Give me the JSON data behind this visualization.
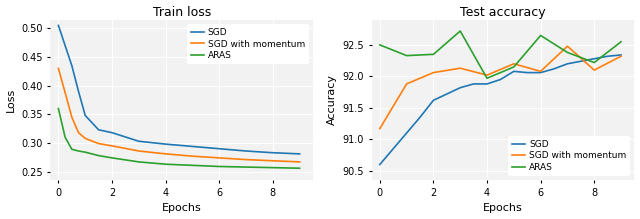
{
  "train_loss": {
    "title": "Train loss",
    "xlabel": "Epochs",
    "ylabel": "Loss",
    "ylim": [
      0.235,
      0.515
    ],
    "xlim": [
      -0.3,
      9.5
    ],
    "yticks": [
      0.25,
      0.3,
      0.35,
      0.4,
      0.45,
      0.5
    ],
    "xticks": [
      0,
      2,
      4,
      6,
      8
    ],
    "SGD": {
      "x": [
        0,
        0.25,
        0.5,
        0.75,
        1,
        1.5,
        2,
        3,
        4,
        5,
        6,
        7,
        8,
        9
      ],
      "y": [
        0.505,
        0.47,
        0.435,
        0.39,
        0.348,
        0.323,
        0.318,
        0.303,
        0.298,
        0.294,
        0.29,
        0.286,
        0.283,
        0.281
      ],
      "color": "#1f77b4"
    },
    "SGD_momentum": {
      "x": [
        0,
        0.25,
        0.5,
        0.75,
        1,
        1.5,
        2,
        3,
        4,
        5,
        6,
        7,
        8,
        9
      ],
      "y": [
        0.43,
        0.388,
        0.345,
        0.318,
        0.308,
        0.299,
        0.295,
        0.286,
        0.281,
        0.277,
        0.274,
        0.271,
        0.269,
        0.267
      ],
      "color": "#ff7f0e"
    },
    "ARAS": {
      "x": [
        0,
        0.25,
        0.5,
        0.75,
        1,
        1.5,
        2,
        3,
        4,
        5,
        6,
        7,
        8,
        9
      ],
      "y": [
        0.36,
        0.31,
        0.289,
        0.286,
        0.284,
        0.278,
        0.274,
        0.267,
        0.263,
        0.261,
        0.259,
        0.258,
        0.257,
        0.256
      ],
      "color": "#2ca02c"
    },
    "legend_loc": "upper right"
  },
  "test_accuracy": {
    "title": "Test accuracy",
    "xlabel": "Epochs",
    "ylabel": "Accuracy",
    "ylim": [
      90.35,
      92.9
    ],
    "xlim": [
      -0.3,
      9.5
    ],
    "yticks": [
      90.5,
      91.0,
      91.5,
      92.0,
      92.5
    ],
    "xticks": [
      0,
      2,
      4,
      6,
      8
    ],
    "SGD": {
      "x": [
        0,
        0.5,
        1,
        1.5,
        2,
        2.5,
        3,
        3.5,
        4,
        4.5,
        5,
        5.5,
        6,
        6.5,
        7,
        7.5,
        8,
        8.5,
        9
      ],
      "y": [
        90.6,
        90.85,
        91.1,
        91.35,
        91.62,
        91.72,
        91.82,
        91.88,
        91.88,
        91.95,
        92.08,
        92.06,
        92.06,
        92.12,
        92.2,
        92.24,
        92.28,
        92.32,
        92.34
      ],
      "color": "#1f77b4"
    },
    "SGD_momentum": {
      "x": [
        0,
        1,
        2,
        3,
        4,
        5,
        6,
        7,
        8,
        9
      ],
      "y": [
        91.17,
        91.88,
        92.06,
        92.13,
        92.02,
        92.2,
        92.08,
        92.48,
        92.1,
        92.32
      ],
      "color": "#ff7f0e"
    },
    "ARAS": {
      "x": [
        0,
        1,
        2,
        3,
        4,
        5,
        6,
        7,
        8,
        9
      ],
      "y": [
        92.5,
        92.33,
        92.35,
        92.72,
        91.97,
        92.15,
        92.65,
        92.38,
        92.22,
        92.55
      ],
      "color": "#2ca02c"
    },
    "legend_loc": "lower right"
  },
  "bg_color": "#f2f2f2",
  "grid_color": "white",
  "figure_bg": "white"
}
